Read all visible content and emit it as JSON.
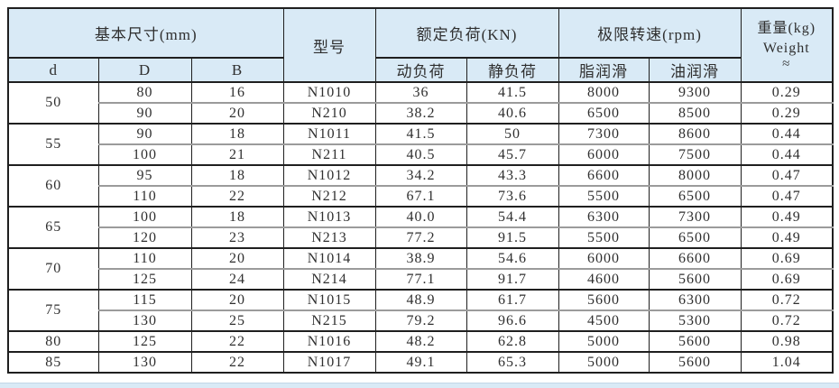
{
  "table": {
    "header": {
      "basic_dims": "基本尺寸(mm)",
      "model": "型号",
      "rated_load": "额定负荷(KN)",
      "limit_speed": "极限转速(rpm)",
      "weight_line1": "重量(kg)",
      "weight_line2": "Weight",
      "weight_line3": "≈",
      "sub": [
        "d",
        "D",
        "B",
        "动负荷",
        "静负荷",
        "脂润滑",
        "油润滑"
      ]
    },
    "groups": [
      {
        "d": "50",
        "rows": [
          [
            "80",
            "16",
            "N1010",
            "36",
            "41.5",
            "8000",
            "9300",
            "0.29"
          ],
          [
            "90",
            "20",
            "N210",
            "38.2",
            "40.6",
            "6500",
            "8500",
            "0.29"
          ]
        ]
      },
      {
        "d": "55",
        "rows": [
          [
            "90",
            "18",
            "N1011",
            "41.5",
            "50",
            "7300",
            "8600",
            "0.44"
          ],
          [
            "100",
            "21",
            "N211",
            "40.5",
            "45.7",
            "6000",
            "7500",
            "0.44"
          ]
        ]
      },
      {
        "d": "60",
        "rows": [
          [
            "95",
            "18",
            "N1012",
            "34.2",
            "43.3",
            "6600",
            "8000",
            "0.47"
          ],
          [
            "110",
            "22",
            "N212",
            "67.1",
            "73.6",
            "5500",
            "6500",
            "0.47"
          ]
        ]
      },
      {
        "d": "65",
        "rows": [
          [
            "100",
            "18",
            "N1013",
            "40.0",
            "54.4",
            "6300",
            "7300",
            "0.49"
          ],
          [
            "120",
            "23",
            "N213",
            "77.2",
            "91.5",
            "5500",
            "6500",
            "0.49"
          ]
        ]
      },
      {
        "d": "70",
        "rows": [
          [
            "110",
            "20",
            "N1014",
            "38.9",
            "54.6",
            "6000",
            "6600",
            "0.69"
          ],
          [
            "125",
            "24",
            "N214",
            "77.1",
            "91.7",
            "4600",
            "5600",
            "0.69"
          ]
        ]
      },
      {
        "d": "75",
        "rows": [
          [
            "115",
            "20",
            "N1015",
            "48.9",
            "61.7",
            "5600",
            "6300",
            "0.72"
          ],
          [
            "130",
            "25",
            "N215",
            "79.2",
            "96.6",
            "4500",
            "5300",
            "0.72"
          ]
        ]
      },
      {
        "d": "80",
        "rows": [
          [
            "125",
            "22",
            "N1016",
            "48.2",
            "62.8",
            "5000",
            "5600",
            "0.98"
          ]
        ]
      },
      {
        "d": "85",
        "rows": [
          [
            "130",
            "22",
            "N1017",
            "49.1",
            "65.3",
            "5000",
            "5600",
            "1.04"
          ]
        ]
      }
    ],
    "colors": {
      "header_bg": "#d9eaf6",
      "border_dark": "#1f1f1f",
      "border_gray": "#9b9b9b"
    }
  }
}
